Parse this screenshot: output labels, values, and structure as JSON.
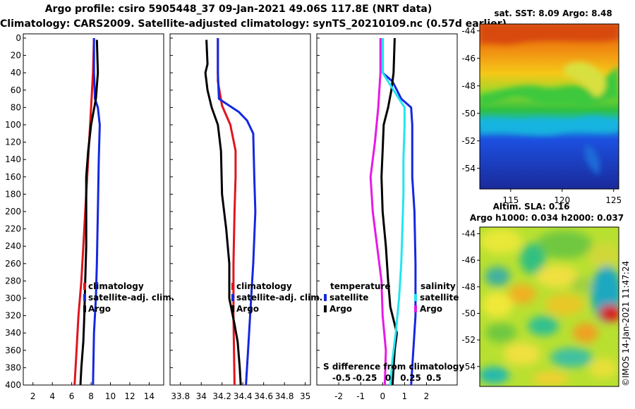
{
  "titles": {
    "line1": "Argo profile: csiro 5905448_37 09-Jan-2021 49.06S 117.8E (NRT data)",
    "line2": "Climatology: CARS2009. Satellite-adjusted climatology: synTS_20210109.nc (0.57d earlier)"
  },
  "colors": {
    "argo": "#000000",
    "climatology": "#e0141e",
    "satellite": "#1428e0",
    "salinity_diff": "#e619e6",
    "satellite_salinity": "#22e5f0"
  },
  "chart_data": [
    {
      "type": "line",
      "name": "temperature-profile",
      "depth_label_list": [
        0,
        20,
        40,
        60,
        80,
        100,
        120,
        140,
        160,
        180,
        200,
        220,
        240,
        260,
        280,
        300,
        320,
        340,
        360,
        380,
        400
      ],
      "xlim": [
        1,
        15.5
      ],
      "ylim": [
        0,
        400
      ],
      "xticks": [
        2,
        4,
        6,
        8,
        10,
        12,
        14
      ],
      "series": [
        {
          "name": "climatology",
          "color": "climatology",
          "points": [
            [
              8.3,
              0
            ],
            [
              8.2,
              40
            ],
            [
              8.0,
              80
            ],
            [
              7.8,
              120
            ],
            [
              7.6,
              160
            ],
            [
              7.4,
              200
            ],
            [
              7.2,
              240
            ],
            [
              7.0,
              280
            ],
            [
              6.7,
              320
            ],
            [
              6.5,
              360
            ],
            [
              6.3,
              400
            ]
          ]
        },
        {
          "name": "satellite-adj. clim.",
          "color": "satellite",
          "points": [
            [
              8.3,
              0
            ],
            [
              8.3,
              40
            ],
            [
              8.4,
              70
            ],
            [
              8.7,
              80
            ],
            [
              8.9,
              100
            ],
            [
              8.8,
              140
            ],
            [
              8.7,
              200
            ],
            [
              8.6,
              260
            ],
            [
              8.5,
              300
            ],
            [
              8.3,
              340
            ],
            [
              8.2,
              400
            ]
          ]
        },
        {
          "name": "Argo",
          "color": "argo",
          "points": [
            [
              8.6,
              2
            ],
            [
              8.7,
              40
            ],
            [
              8.5,
              70
            ],
            [
              8.3,
              82
            ],
            [
              8.0,
              100
            ],
            [
              7.7,
              130
            ],
            [
              7.5,
              160
            ],
            [
              7.5,
              200
            ],
            [
              7.5,
              240
            ],
            [
              7.4,
              280
            ],
            [
              7.3,
              320
            ],
            [
              7.2,
              350
            ],
            [
              7.0,
              380
            ],
            [
              6.9,
              400
            ]
          ]
        }
      ],
      "legend": [
        "climatology",
        "satellite-adj. clim.",
        "Argo"
      ]
    },
    {
      "type": "line",
      "name": "salinity-profile",
      "xlim": [
        33.7,
        35.05
      ],
      "ylim": [
        0,
        400
      ],
      "xticks": [
        "33.8",
        "34",
        "34.2",
        "34.4",
        "34.6",
        "34.8",
        "35"
      ],
      "series": [
        {
          "name": "climatology",
          "color": "climatology",
          "points": [
            [
              34.16,
              0
            ],
            [
              34.16,
              50
            ],
            [
              34.2,
              78
            ],
            [
              34.28,
              100
            ],
            [
              34.33,
              130
            ],
            [
              34.33,
              160
            ],
            [
              34.32,
              200
            ],
            [
              34.31,
              260
            ],
            [
              34.31,
              320
            ],
            [
              34.32,
              400
            ]
          ]
        },
        {
          "name": "satellite-adj. clim.",
          "color": "satellite",
          "points": [
            [
              34.16,
              0
            ],
            [
              34.16,
              40
            ],
            [
              34.17,
              70
            ],
            [
              34.27,
              78
            ],
            [
              34.36,
              85
            ],
            [
              34.44,
              95
            ],
            [
              34.5,
              110
            ],
            [
              34.51,
              160
            ],
            [
              34.52,
              200
            ],
            [
              34.5,
              260
            ],
            [
              34.47,
              320
            ],
            [
              34.45,
              360
            ],
            [
              34.43,
              400
            ]
          ]
        },
        {
          "name": "Argo",
          "color": "argo",
          "points": [
            [
              34.05,
              2
            ],
            [
              34.06,
              30
            ],
            [
              34.04,
              40
            ],
            [
              34.06,
              60
            ],
            [
              34.1,
              80
            ],
            [
              34.16,
              100
            ],
            [
              34.19,
              130
            ],
            [
              34.2,
              180
            ],
            [
              34.24,
              220
            ],
            [
              34.27,
              260
            ],
            [
              34.27,
              300
            ],
            [
              34.32,
              330
            ],
            [
              34.35,
              350
            ],
            [
              34.37,
              380
            ],
            [
              34.38,
              400
            ]
          ]
        }
      ],
      "legend": [
        "climatology",
        "satellite-adj. clim.",
        "Argo"
      ]
    },
    {
      "type": "line",
      "name": "difference-from-climatology",
      "xlim": [
        -3,
        3.4
      ],
      "ylim": [
        0,
        400
      ],
      "xticks": [
        "-2",
        "-1",
        "0",
        "1",
        "2"
      ],
      "s_ticks": [
        "-0.5",
        "-0.25",
        "0",
        "0.25",
        "0.5"
      ],
      "s_axis_label": "S difference from climatology",
      "series": [
        {
          "name": "temperature satellite",
          "color": "satellite",
          "points": [
            [
              0.0,
              0
            ],
            [
              0.0,
              40
            ],
            [
              0.45,
              50
            ],
            [
              0.85,
              70
            ],
            [
              1.3,
              80
            ],
            [
              1.35,
              100
            ],
            [
              1.35,
              160
            ],
            [
              1.45,
              200
            ],
            [
              1.5,
              260
            ],
            [
              1.5,
              320
            ],
            [
              1.4,
              360
            ],
            [
              1.3,
              400
            ]
          ]
        },
        {
          "name": "temperature Argo",
          "color": "argo",
          "points": [
            [
              0.55,
              0
            ],
            [
              0.5,
              40
            ],
            [
              0.4,
              60
            ],
            [
              0.25,
              80
            ],
            [
              0.05,
              100
            ],
            [
              0.0,
              130
            ],
            [
              -0.05,
              160
            ],
            [
              0.0,
              200
            ],
            [
              0.15,
              240
            ],
            [
              0.25,
              280
            ],
            [
              0.35,
              310
            ],
            [
              0.65,
              340
            ],
            [
              0.55,
              360
            ],
            [
              0.45,
              400
            ]
          ]
        },
        {
          "name": "salinity satellite",
          "color": "satellite_salinity",
          "points": [
            [
              0.0,
              0
            ],
            [
              0.0,
              40
            ],
            [
              0.5,
              60
            ],
            [
              1.0,
              80
            ],
            [
              1.0,
              100
            ],
            [
              0.95,
              140
            ],
            [
              0.95,
              180
            ],
            [
              0.9,
              220
            ],
            [
              0.85,
              260
            ],
            [
              0.75,
              300
            ],
            [
              0.6,
              340
            ],
            [
              0.45,
              370
            ],
            [
              0.35,
              400
            ]
          ]
        },
        {
          "name": "salinity Argo",
          "color": "salinity_diff",
          "points": [
            [
              -0.1,
              0
            ],
            [
              -0.1,
              40
            ],
            [
              -0.2,
              80
            ],
            [
              -0.35,
              120
            ],
            [
              -0.55,
              160
            ],
            [
              -0.45,
              200
            ],
            [
              -0.25,
              240
            ],
            [
              -0.05,
              280
            ],
            [
              0.0,
              320
            ],
            [
              0.15,
              360
            ],
            [
              0.1,
              400
            ]
          ]
        }
      ],
      "legend_headers": [
        "temperature",
        "salinity"
      ],
      "legend": [
        "satellite",
        "Argo",
        "satellite",
        "Argo"
      ]
    },
    {
      "type": "heatmap",
      "name": "sst-map",
      "title": "sat. SST: 8.09 Argo: 8.48",
      "xticks": [
        "115",
        "120",
        "125"
      ],
      "yticks": [
        "-44",
        "-46",
        "-48",
        "-50",
        "-52",
        "-54"
      ],
      "xlim": [
        112,
        125.5
      ],
      "ylim": [
        -55.5,
        -43.5
      ]
    },
    {
      "type": "heatmap",
      "name": "sla-map",
      "title_line1": "Altim. SLA: 0.16",
      "title_line2": "Argo h1000: 0.034 h2000: 0.037",
      "yticks": [
        "-44",
        "-46",
        "-48",
        "-50",
        "-52",
        "-54"
      ],
      "ylim": [
        -55.5,
        -43.5
      ]
    }
  ],
  "labels": {
    "depth_ticks": [
      "0",
      "20",
      "40",
      "60",
      "80",
      "100",
      "120",
      "140",
      "160",
      "180",
      "200",
      "220",
      "240",
      "260",
      "280",
      "300",
      "320",
      "340",
      "360",
      "380",
      "400"
    ],
    "legend_climatology": "climatology",
    "legend_satellite": "satellite-adj. clim.",
    "legend_argo": "Argo",
    "legend_temperature": "temperature",
    "legend_salinity": "salinity",
    "legend_sat": "satellite",
    "credit": "©IMOS 14-Jan-2021 11:47:24"
  }
}
